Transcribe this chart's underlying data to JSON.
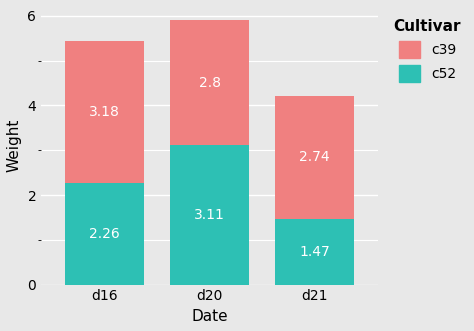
{
  "dates": [
    "d16",
    "d20",
    "d21"
  ],
  "c52_values": [
    2.26,
    3.11,
    1.47
  ],
  "c39_values": [
    3.18,
    2.8,
    2.74
  ],
  "color_c39": "#F08080",
  "color_c52": "#2DC0B4",
  "background_color": "#E8E8E8",
  "panel_background": "#E8E8E8",
  "grid_color": "#FFFFFF",
  "ylabel": "Weight",
  "xlabel": "Date",
  "legend_title": "Cultivar",
  "ylim": [
    0,
    6.2
  ],
  "yticks": [
    0,
    2,
    4,
    6
  ],
  "label_color": "white",
  "label_fontsize": 10,
  "bar_width": 0.75,
  "axis_label_fontsize": 11,
  "tick_fontsize": 10
}
